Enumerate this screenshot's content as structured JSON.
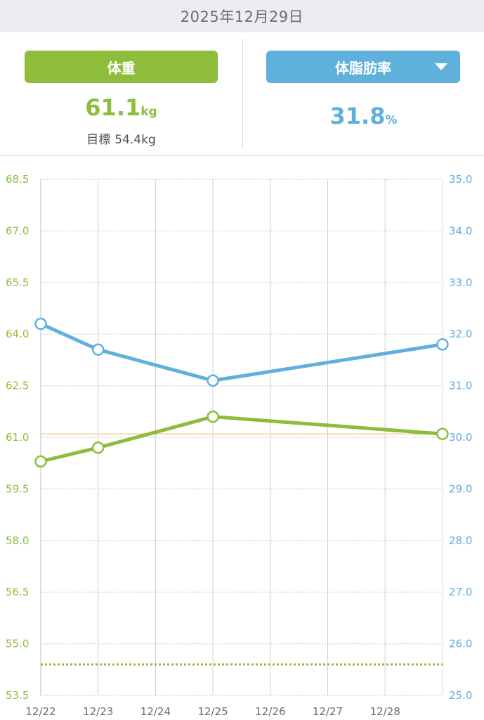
{
  "header": {
    "date": "2025年12月29日"
  },
  "weight_panel": {
    "button_label": "体重",
    "value": "61.1",
    "unit": "kg",
    "goal_label": "目標",
    "goal_value": "54.4kg"
  },
  "fat_panel": {
    "button_label": "体脂肪率",
    "value": "31.8",
    "unit": "%"
  },
  "colors": {
    "weight": "#8ebd3c",
    "fat": "#5fb0dd",
    "grid": "#d0d0d0",
    "text_gray": "#6e6e6e",
    "header_bg": "#ececf1"
  },
  "chart_data": {
    "type": "line",
    "categories": [
      "12/22",
      "12/23",
      "12/24",
      "12/25",
      "12/26",
      "12/27",
      "12/28",
      "12/29"
    ],
    "x_tick_labels": [
      "12/22",
      "12/23",
      "12/24",
      "12/25",
      "12/26",
      "12/27",
      "12/28"
    ],
    "left_axis": {
      "range": [
        53.5,
        68.5
      ],
      "ticks": [
        "68.5",
        "67.0",
        "65.5",
        "64.0",
        "62.5",
        "61.0",
        "59.5",
        "58.0",
        "56.5",
        "55.0",
        "53.5"
      ]
    },
    "right_axis": {
      "range": [
        25.0,
        35.0
      ],
      "ticks": [
        "35.0",
        "34.0",
        "33.0",
        "32.0",
        "31.0",
        "30.0",
        "29.0",
        "28.0",
        "27.0",
        "26.0",
        "25.0"
      ]
    },
    "series": [
      {
        "axis": "left",
        "color": "#8ebd3c",
        "points": [
          {
            "x": "12/22",
            "y": 60.3
          },
          {
            "x": "12/23",
            "y": 60.7
          },
          {
            "x": "12/25",
            "y": 61.6
          },
          {
            "x": "12/29",
            "y": 61.1
          }
        ]
      },
      {
        "axis": "right",
        "color": "#5fb0dd",
        "points": [
          {
            "x": "12/22",
            "y": 32.2
          },
          {
            "x": "12/23",
            "y": 31.7
          },
          {
            "x": "12/25",
            "y": 31.1
          },
          {
            "x": "12/29",
            "y": 31.8
          }
        ]
      }
    ],
    "reference_lines": [
      {
        "axis": "left",
        "value": 61.1,
        "color": "#f3c98a",
        "style": "solid"
      },
      {
        "axis": "left",
        "value": 54.4,
        "color": "#8ebd3c",
        "style": "dotted"
      }
    ],
    "grid": true
  }
}
